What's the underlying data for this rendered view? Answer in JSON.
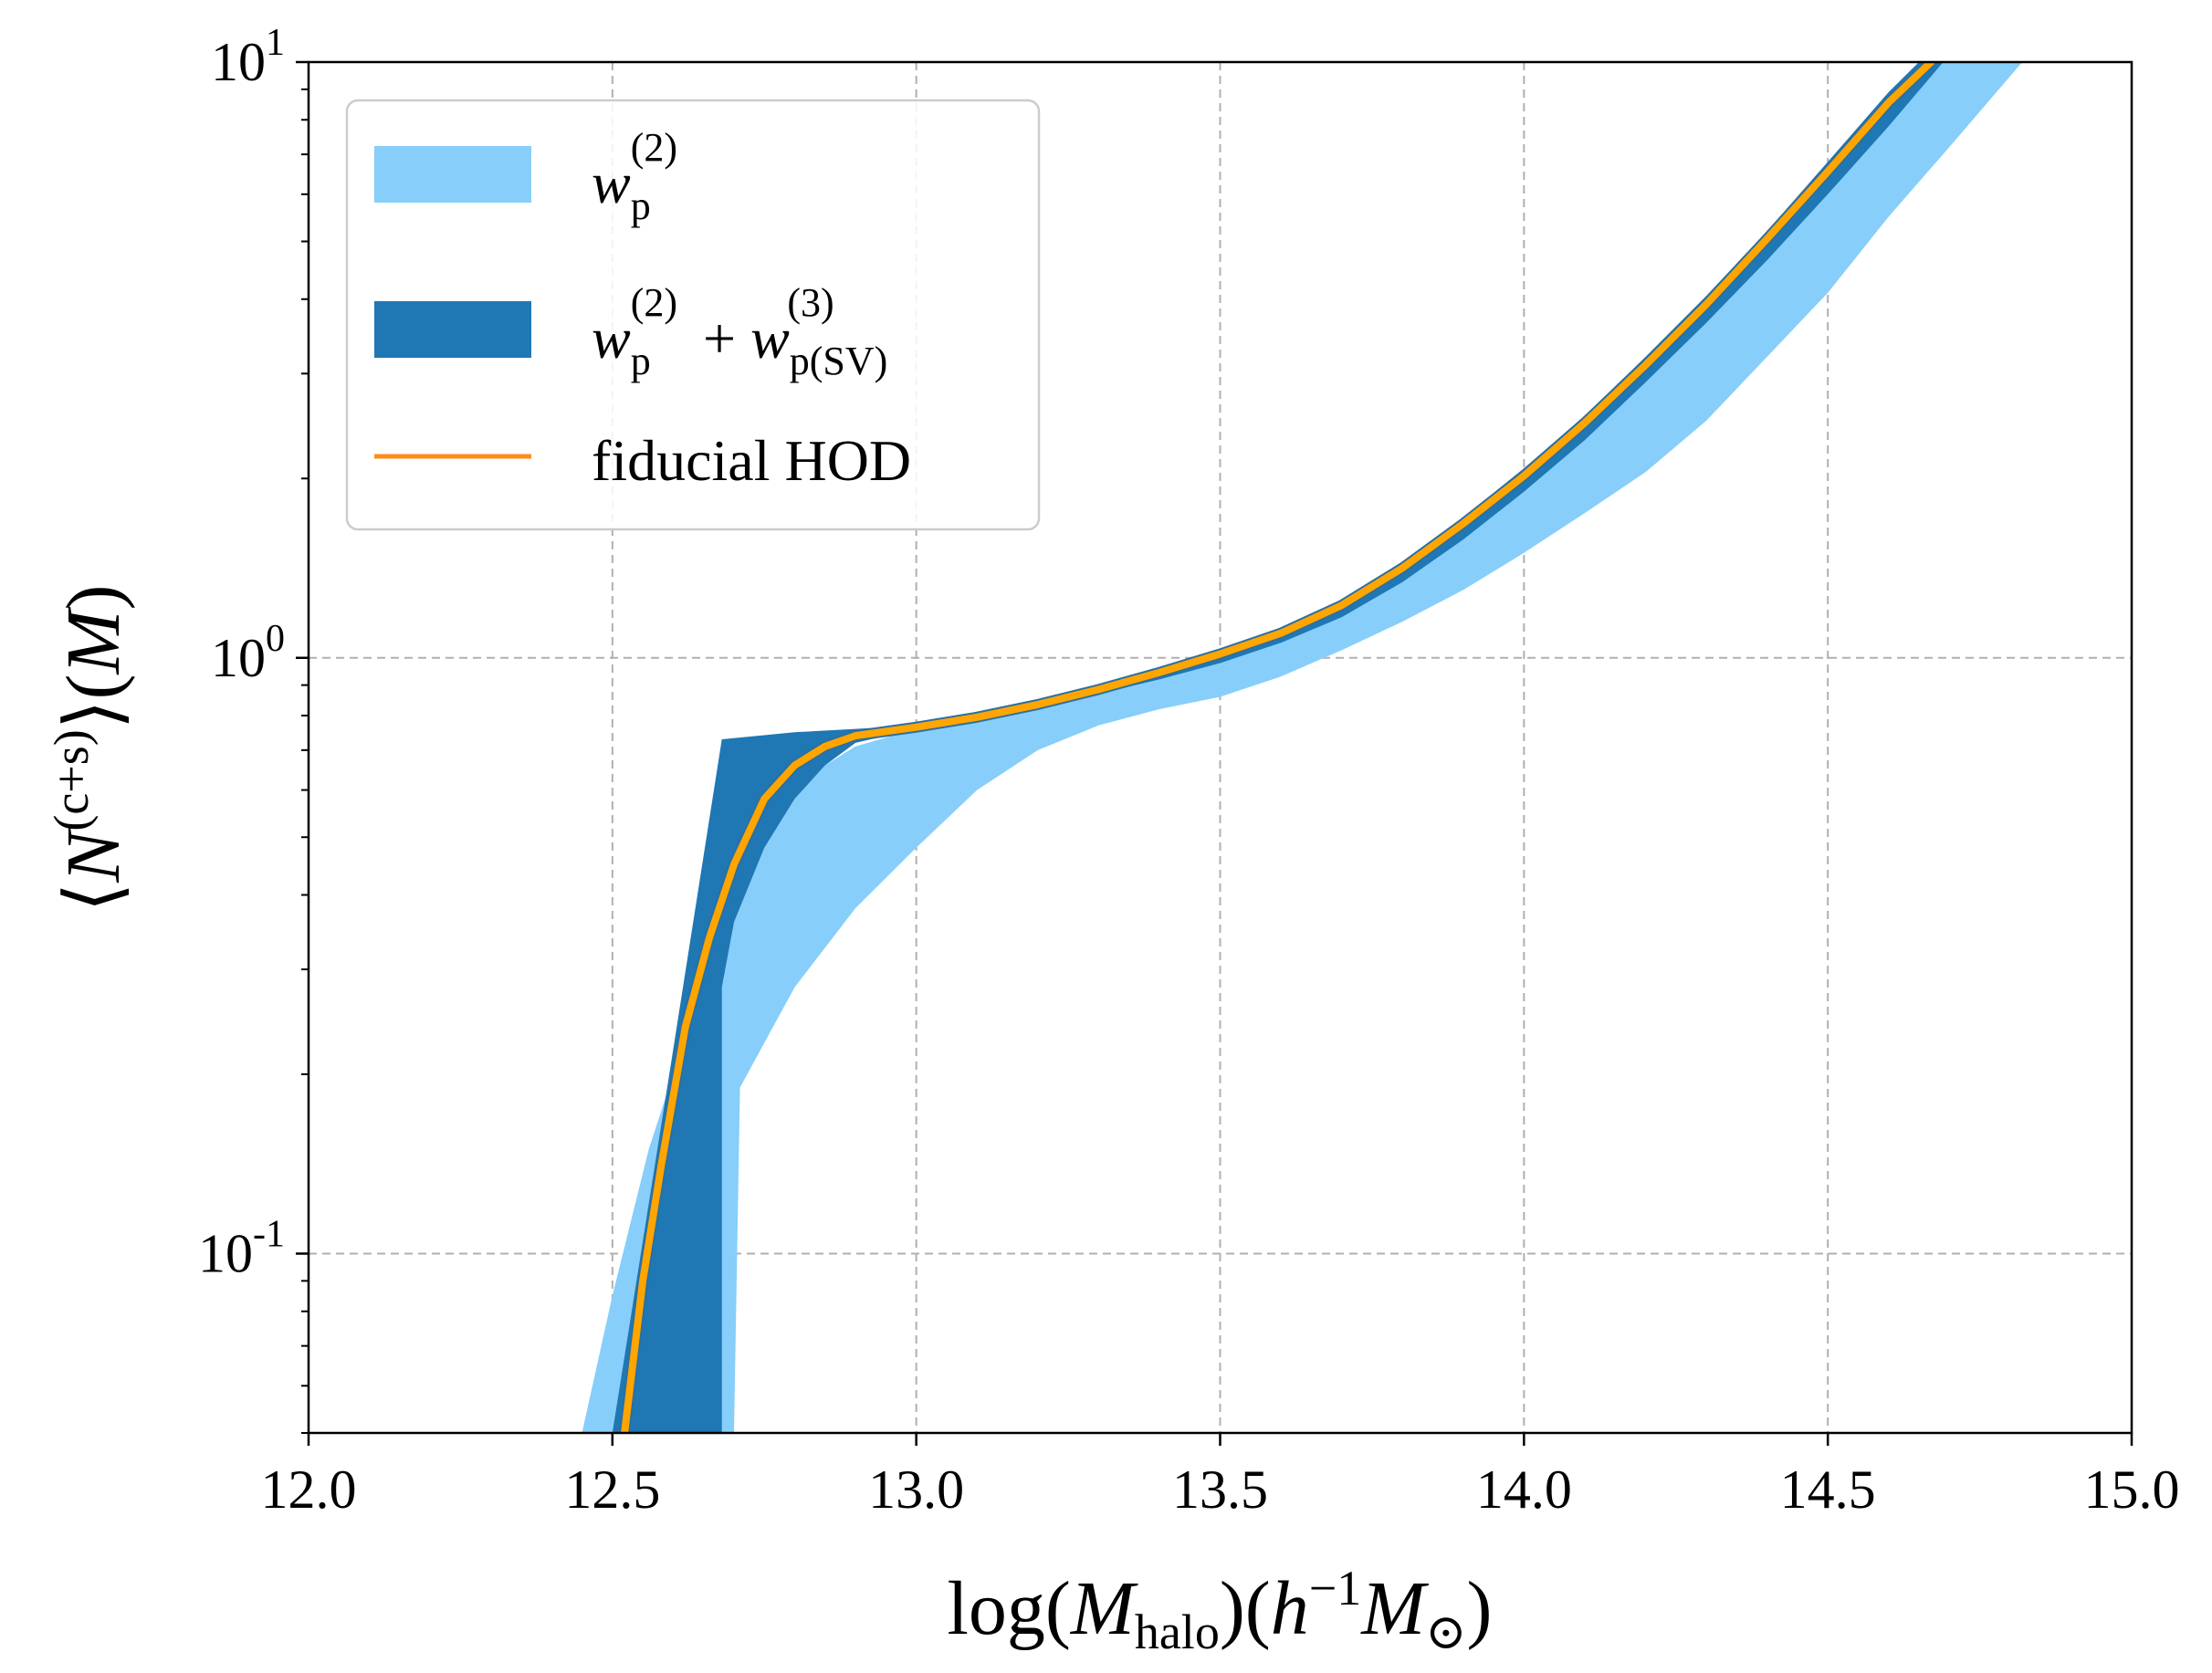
{
  "chart_data": {
    "type": "area",
    "xlabel": "log(M_halo)(h^-1 M_⊙)",
    "ylabel": "⟨N^(c+s)⟩(M)",
    "xlim": [
      12.0,
      15.0
    ],
    "ylim": [
      0.05,
      10
    ],
    "yscale": "log",
    "grid": true,
    "legend_position": "top-left",
    "x_ticks": [
      12.0,
      12.5,
      13.0,
      13.5,
      14.0,
      14.5,
      15.0
    ],
    "x_tick_labels": [
      "12.0",
      "12.5",
      "13.0",
      "13.5",
      "14.0",
      "14.5",
      "15.0"
    ],
    "y_ticks": [
      0.1,
      1,
      10
    ],
    "y_tick_labels": [
      {
        "base": "10",
        "exp": "-1"
      },
      {
        "base": "10",
        "exp": "0"
      },
      {
        "base": "10",
        "exp": "1"
      }
    ],
    "series": [
      {
        "name": "w_p^(2)",
        "kind": "band",
        "color": "#87CEFA",
        "lower": [
          [
            12.7,
            0.05
          ],
          [
            12.71,
            0.19
          ],
          [
            12.8,
            0.28
          ],
          [
            12.9,
            0.38
          ],
          [
            13.0,
            0.48
          ],
          [
            13.1,
            0.6
          ],
          [
            13.2,
            0.7
          ],
          [
            13.3,
            0.77
          ],
          [
            13.4,
            0.82
          ],
          [
            13.5,
            0.86
          ],
          [
            13.6,
            0.93
          ],
          [
            13.7,
            1.03
          ],
          [
            13.8,
            1.15
          ],
          [
            13.9,
            1.3
          ],
          [
            14.0,
            1.5
          ],
          [
            14.1,
            1.75
          ],
          [
            14.2,
            2.05
          ],
          [
            14.3,
            2.5
          ],
          [
            14.4,
            3.2
          ],
          [
            14.5,
            4.1
          ],
          [
            14.6,
            5.5
          ],
          [
            14.7,
            7.2
          ],
          [
            14.82,
            10.0
          ]
        ],
        "upper": [
          [
            12.45,
            0.05
          ],
          [
            12.5,
            0.085
          ],
          [
            12.56,
            0.15
          ],
          [
            12.6,
            0.2
          ],
          [
            12.65,
            0.26
          ],
          [
            12.7,
            0.36
          ],
          [
            12.75,
            0.48
          ],
          [
            12.8,
            0.58
          ],
          [
            12.85,
            0.66
          ],
          [
            12.9,
            0.71
          ],
          [
            13.0,
            0.76
          ],
          [
            13.1,
            0.79
          ],
          [
            13.2,
            0.83
          ],
          [
            13.3,
            0.88
          ],
          [
            13.4,
            0.94
          ],
          [
            13.5,
            1.0
          ],
          [
            13.6,
            1.08
          ],
          [
            13.7,
            1.2
          ],
          [
            13.8,
            1.38
          ],
          [
            13.9,
            1.63
          ],
          [
            14.0,
            1.97
          ],
          [
            14.1,
            2.4
          ],
          [
            14.2,
            3.0
          ],
          [
            14.3,
            3.8
          ],
          [
            14.4,
            4.9
          ],
          [
            14.5,
            6.3
          ],
          [
            14.6,
            8.2
          ],
          [
            14.66,
            10.0
          ]
        ]
      },
      {
        "name": "w_p^(2) + w_p(SV)^(3)",
        "kind": "band",
        "color": "#1F77B4",
        "lower": [
          [
            12.68,
            0.05
          ],
          [
            12.68,
            0.28
          ],
          [
            12.7,
            0.36
          ],
          [
            12.75,
            0.48
          ],
          [
            12.8,
            0.58
          ],
          [
            12.85,
            0.66
          ],
          [
            12.9,
            0.72
          ],
          [
            13.0,
            0.76
          ],
          [
            13.1,
            0.79
          ],
          [
            13.2,
            0.82
          ],
          [
            13.3,
            0.87
          ],
          [
            13.4,
            0.92
          ],
          [
            13.5,
            0.98
          ],
          [
            13.6,
            1.06
          ],
          [
            13.7,
            1.17
          ],
          [
            13.8,
            1.34
          ],
          [
            13.9,
            1.58
          ],
          [
            14.0,
            1.9
          ],
          [
            14.1,
            2.32
          ],
          [
            14.2,
            2.9
          ],
          [
            14.3,
            3.65
          ],
          [
            14.4,
            4.65
          ],
          [
            14.5,
            6.0
          ],
          [
            14.6,
            7.8
          ],
          [
            14.69,
            10.0
          ]
        ],
        "upper": [
          [
            12.5,
            0.05
          ],
          [
            12.6,
            0.22
          ],
          [
            12.68,
            0.73
          ],
          [
            12.8,
            0.75
          ],
          [
            12.9,
            0.76
          ],
          [
            13.0,
            0.77
          ],
          [
            13.1,
            0.8
          ],
          [
            13.2,
            0.84
          ],
          [
            13.3,
            0.9
          ],
          [
            13.4,
            0.96
          ],
          [
            13.5,
            1.03
          ],
          [
            13.6,
            1.12
          ],
          [
            13.7,
            1.25
          ],
          [
            13.8,
            1.45
          ],
          [
            13.9,
            1.72
          ],
          [
            14.0,
            2.08
          ],
          [
            14.1,
            2.55
          ],
          [
            14.2,
            3.2
          ],
          [
            14.3,
            4.05
          ],
          [
            14.4,
            5.2
          ],
          [
            14.5,
            6.8
          ],
          [
            14.6,
            8.9
          ],
          [
            14.65,
            10.0
          ]
        ]
      },
      {
        "name": "fiducial HOD",
        "kind": "line",
        "color": "#FFA500",
        "points": [
          [
            12.52,
            0.05
          ],
          [
            12.55,
            0.09
          ],
          [
            12.58,
            0.14
          ],
          [
            12.62,
            0.24
          ],
          [
            12.66,
            0.34
          ],
          [
            12.7,
            0.45
          ],
          [
            12.75,
            0.58
          ],
          [
            12.8,
            0.66
          ],
          [
            12.85,
            0.71
          ],
          [
            12.9,
            0.74
          ],
          [
            13.0,
            0.765
          ],
          [
            13.1,
            0.795
          ],
          [
            13.2,
            0.835
          ],
          [
            13.3,
            0.885
          ],
          [
            13.4,
            0.945
          ],
          [
            13.5,
            1.015
          ],
          [
            13.6,
            1.1
          ],
          [
            13.7,
            1.225
          ],
          [
            13.8,
            1.415
          ],
          [
            13.9,
            1.68
          ],
          [
            14.0,
            2.02
          ],
          [
            14.1,
            2.48
          ],
          [
            14.2,
            3.1
          ],
          [
            14.3,
            3.92
          ],
          [
            14.4,
            5.05
          ],
          [
            14.5,
            6.55
          ],
          [
            14.6,
            8.55
          ],
          [
            14.67,
            10.0
          ]
        ]
      }
    ]
  }
}
